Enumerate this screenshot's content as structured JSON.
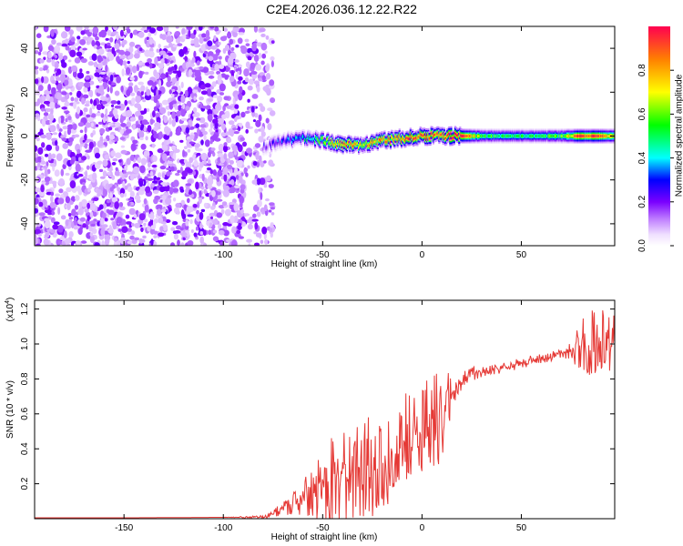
{
  "title": "C2E4.2026.036.12.22.R22",
  "chart_data": [
    {
      "type": "heatmap",
      "xlabel": "Height of straight line (km)",
      "ylabel": "Frequency (Hz)",
      "xlim": [
        -195,
        97
      ],
      "ylim": [
        -50,
        50
      ],
      "xticks": [
        -150,
        -100,
        -50,
        0,
        50
      ],
      "yticks": [
        -40,
        -20,
        0,
        20,
        40
      ],
      "colorbar": {
        "label": "Normalized spectral amplitude",
        "range": [
          0.0,
          1.0
        ],
        "ticks": [
          0.0,
          0.2,
          0.4,
          0.6,
          0.8
        ],
        "tick_labels": [
          "0.0",
          "0.2",
          "0.4",
          "0.6",
          "0.8"
        ]
      },
      "noise_region": {
        "x_range": [
          -195,
          -75
        ],
        "freq_range": [
          -50,
          50
        ],
        "amplitude": [
          0.02,
          0.15
        ]
      },
      "signal_track": {
        "x": [
          -80,
          -70,
          -60,
          -50,
          -40,
          -30,
          -20,
          -10,
          0,
          10,
          20,
          30,
          40,
          50,
          60,
          70,
          80,
          90,
          97
        ],
        "frequency": [
          -5,
          -2,
          -1,
          -2,
          -4,
          -4,
          -2,
          -1,
          0,
          0,
          0,
          0,
          0,
          0,
          0,
          0,
          0,
          0,
          0
        ],
        "peak_amplitude": [
          0.15,
          0.3,
          0.4,
          0.6,
          0.9,
          0.75,
          0.85,
          0.9,
          0.95,
          0.9,
          1.0,
          0.55,
          0.5,
          0.5,
          0.5,
          0.55,
          0.95,
          0.9,
          0.7
        ]
      }
    },
    {
      "type": "line",
      "xlabel": "Height of straight line (km)",
      "ylabel": "SNR (10 * v/v)",
      "y_multiplier_label": "(x10",
      "y_multiplier_exp": "4",
      "xlim": [
        -195,
        97
      ],
      "ylim": [
        0,
        1.25
      ],
      "xticks": [
        -150,
        -100,
        -50,
        0,
        50
      ],
      "yticks": [
        0.2,
        0.4,
        0.6,
        0.8,
        1.0,
        1.2
      ],
      "ytick_labels": [
        "0.2",
        "0.4",
        "0.6",
        "0.8",
        "1.0",
        "1.2"
      ],
      "series": [
        {
          "name": "SNR",
          "color": "#e53935",
          "x": [
            -195,
            -150,
            -100,
            -78,
            -70,
            -60,
            -50,
            -45,
            -40,
            -35,
            -30,
            -25,
            -20,
            -15,
            -10,
            -5,
            0,
            5,
            10,
            15,
            20,
            25,
            30,
            40,
            50,
            60,
            70,
            75,
            80,
            85,
            90,
            97
          ],
          "y": [
            0.005,
            0.005,
            0.008,
            0.01,
            0.06,
            0.12,
            0.18,
            0.2,
            0.22,
            0.25,
            0.28,
            0.3,
            0.3,
            0.35,
            0.42,
            0.48,
            0.52,
            0.55,
            0.55,
            0.72,
            0.78,
            0.82,
            0.84,
            0.86,
            0.89,
            0.92,
            0.94,
            0.96,
            0.98,
            1.0,
            1.02,
            1.0
          ],
          "spread": [
            0,
            0,
            0,
            0.01,
            0.04,
            0.1,
            0.22,
            0.28,
            0.3,
            0.28,
            0.3,
            0.3,
            0.32,
            0.28,
            0.3,
            0.3,
            0.25,
            0.28,
            0.3,
            0.12,
            0.06,
            0.05,
            0.03,
            0.03,
            0.03,
            0.03,
            0.03,
            0.05,
            0.15,
            0.2,
            0.2,
            0.2
          ]
        }
      ]
    }
  ]
}
